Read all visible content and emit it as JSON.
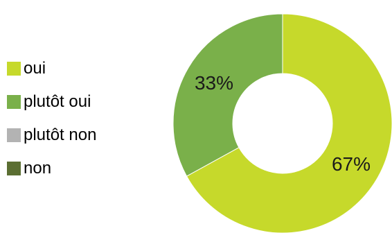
{
  "chart_data": {
    "type": "pie",
    "variant": "donut",
    "categories": [
      "oui",
      "plutôt oui",
      "plutôt non",
      "non"
    ],
    "values": [
      67,
      33,
      0,
      0
    ],
    "data_labels": [
      "67%",
      "33%",
      "",
      ""
    ],
    "colors": [
      "#c6d92b",
      "#7ab04a",
      "#b3b3b3",
      "#5b6e32"
    ],
    "legend_position": "left",
    "title": ""
  }
}
